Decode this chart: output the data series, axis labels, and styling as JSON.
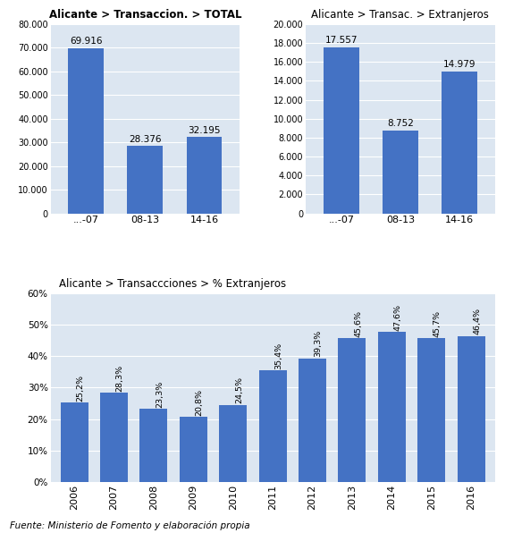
{
  "top_left": {
    "title": "Alicante > Transaccion. > TOTAL",
    "title_bold": true,
    "categories": [
      "...-07",
      "08-13",
      "14-16"
    ],
    "values": [
      69916,
      28376,
      32195
    ],
    "labels": [
      "69.916",
      "28.376",
      "32.195"
    ],
    "ylim": [
      0,
      80000
    ],
    "yticks": [
      0,
      10000,
      20000,
      30000,
      40000,
      50000,
      60000,
      70000,
      80000
    ],
    "ytick_labels": [
      "0",
      "10.000",
      "20.000",
      "30.000",
      "40.000",
      "50.000",
      "60.000",
      "70.000",
      "80.000"
    ],
    "bar_color": "#4472C4"
  },
  "top_right": {
    "title": "Alicante > Transac. > Extranjeros",
    "title_bold": false,
    "categories": [
      "...-07",
      "08-13",
      "14-16"
    ],
    "values": [
      17557,
      8752,
      14979
    ],
    "labels": [
      "17.557",
      "8.752",
      "14.979"
    ],
    "ylim": [
      0,
      20000
    ],
    "yticks": [
      0,
      2000,
      4000,
      6000,
      8000,
      10000,
      12000,
      14000,
      16000,
      18000,
      20000
    ],
    "ytick_labels": [
      "0",
      "2.000",
      "4.000",
      "6.000",
      "8.000",
      "10.000",
      "12.000",
      "14.000",
      "16.000",
      "18.000",
      "20.000"
    ],
    "bar_color": "#4472C4"
  },
  "bottom": {
    "title": "Alicante > Transaccciones > % Extranjeros",
    "title_bold": false,
    "categories": [
      "2006",
      "2007",
      "2008",
      "2009",
      "2010",
      "2011",
      "2012",
      "2013",
      "2014",
      "2015",
      "2016"
    ],
    "values": [
      0.252,
      0.283,
      0.233,
      0.208,
      0.245,
      0.354,
      0.393,
      0.456,
      0.476,
      0.457,
      0.464
    ],
    "labels": [
      "25,2%",
      "28,3%",
      "23,3%",
      "20,8%",
      "24,5%",
      "35,4%",
      "39,3%",
      "45,6%",
      "47,6%",
      "45,7%",
      "46,4%"
    ],
    "ylim": [
      0,
      0.6
    ],
    "yticks": [
      0,
      0.1,
      0.2,
      0.3,
      0.4,
      0.5,
      0.6
    ],
    "ytick_labels": [
      "0%",
      "10%",
      "20%",
      "30%",
      "40%",
      "50%",
      "60%"
    ],
    "bar_color": "#4472C4"
  },
  "figure_bg": "#ffffff",
  "plot_bg": "#dce6f1",
  "footer": "Fuente: Ministerio de Fomento y elaboración propia"
}
